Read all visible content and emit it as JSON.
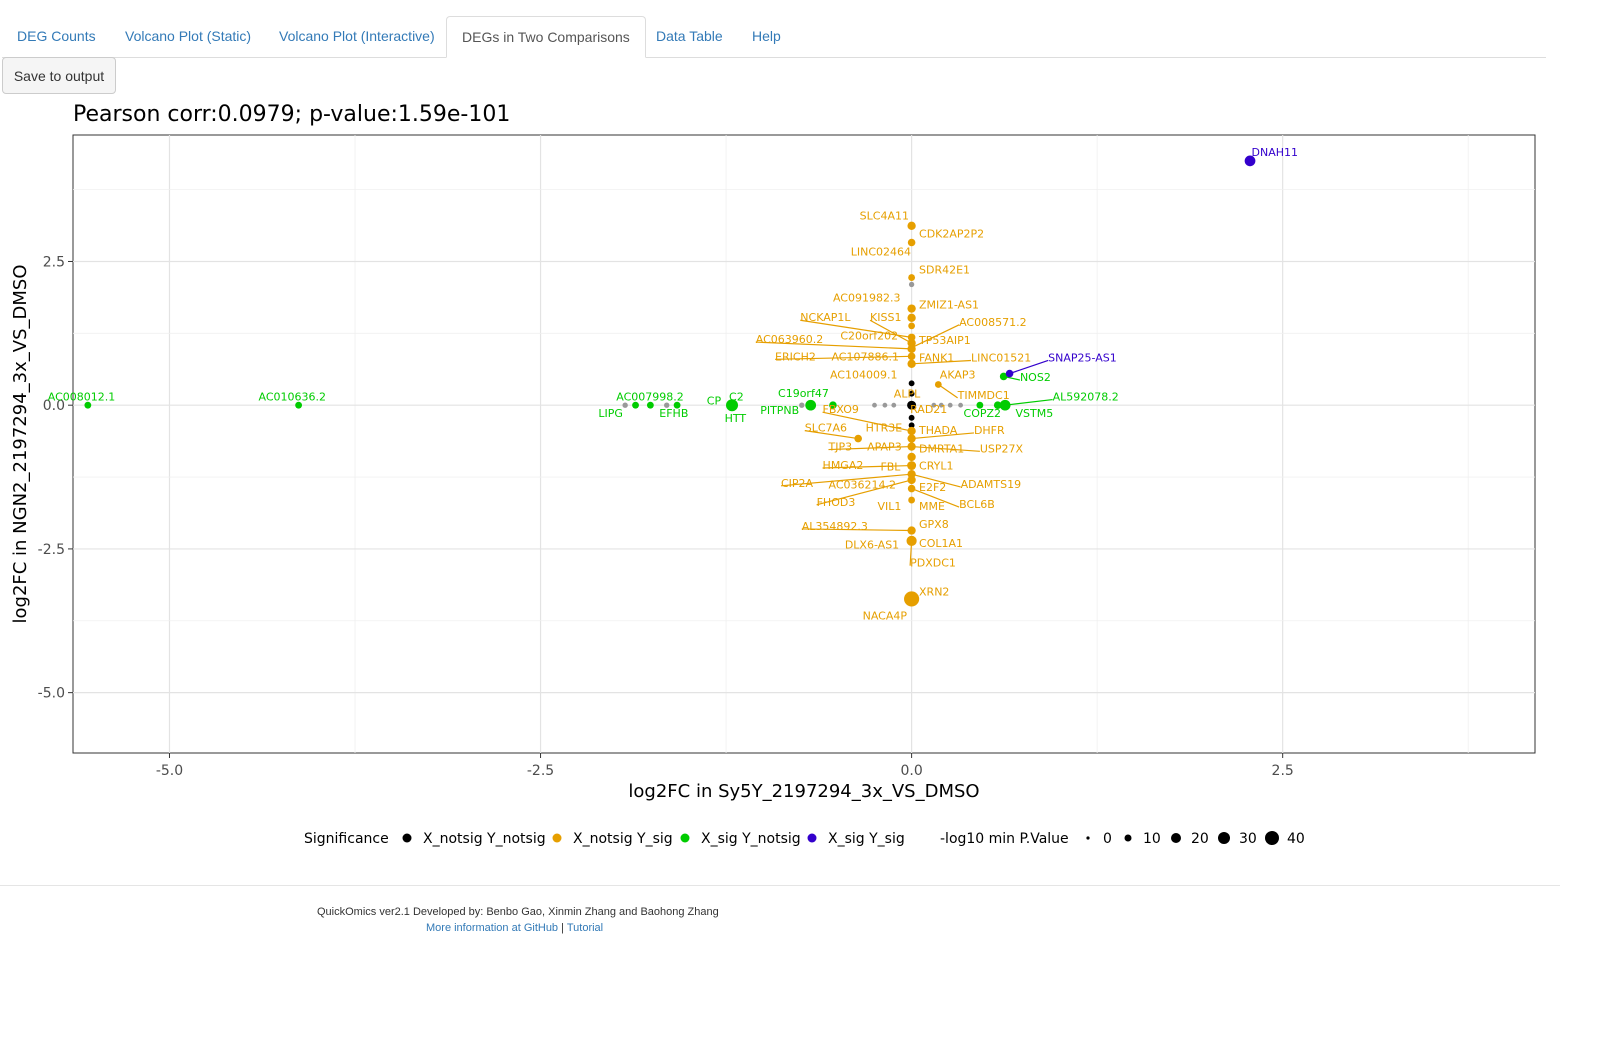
{
  "tabs": [
    {
      "label": "DEG Counts",
      "active": false
    },
    {
      "label": "Volcano Plot (Static)",
      "active": false
    },
    {
      "label": "Volcano Plot (Interactive)",
      "active": false
    },
    {
      "label": "DEGs in Two Comparisons",
      "active": true
    },
    {
      "label": "Data Table",
      "active": false
    },
    {
      "label": "Help",
      "active": false
    }
  ],
  "toolbar": {
    "save_label": "Save to output"
  },
  "footer": {
    "credit": "QuickOmics ver2.1 Developed by: Benbo Gao, Xinmin Zhang and Baohong Zhang",
    "more_info": "More information at GitHub",
    "separator": "|",
    "tutorial": "Tutorial"
  },
  "chart_data": {
    "type": "scatter",
    "title": "Pearson corr:0.0979; p-value:1.59e-101",
    "xlabel": "log2FC in Sy5Y_2197294_3x_VS_DMSO",
    "ylabel": "log2FC in NGN2_2197294_3x_VS_DMSO",
    "xlim": [
      -5.65,
      4.2
    ],
    "ylim": [
      -6.05,
      4.7
    ],
    "xticks": [
      -5.0,
      -2.5,
      0.0,
      2.5
    ],
    "xtick_labels": [
      "-5.0",
      "-2.5",
      "0.0",
      "2.5"
    ],
    "yticks": [
      -5.0,
      -2.5,
      0.0,
      2.5
    ],
    "ytick_labels": [
      "-5.0",
      "-2.5",
      "0.0",
      "2.5"
    ],
    "grid": true,
    "legend_placement": "bottom",
    "colors": {
      "X_notsig Y_notsig": "#000000",
      "X_notsig Y_sig": "#E69F00",
      "X_sig Y_notsig": "#00CC00",
      "X_sig Y_sig": "#3300CC",
      "other": "#999999"
    },
    "legend": {
      "significance_title": "Significance",
      "significance_entries": [
        {
          "label": "X_notsig Y_notsig",
          "color": "#000000"
        },
        {
          "label": "X_notsig Y_sig",
          "color": "#E69F00"
        },
        {
          "label": "X_sig Y_notsig",
          "color": "#00CC00"
        },
        {
          "label": "X_sig Y_sig",
          "color": "#3300CC"
        }
      ],
      "size_title": "-log10 min P.Value",
      "size_entries": [
        "0",
        "10",
        "20",
        "30",
        "40"
      ]
    },
    "points": [
      {
        "x": 2.28,
        "y": 4.25,
        "group": "X_sig Y_sig",
        "size": 20
      },
      {
        "x": 0.66,
        "y": 0.55,
        "group": "X_sig Y_sig",
        "size": 10
      },
      {
        "x": -5.55,
        "y": 0.0,
        "group": "X_sig Y_notsig",
        "size": 8
      },
      {
        "x": -4.13,
        "y": 0.0,
        "group": "X_sig Y_notsig",
        "size": 8
      },
      {
        "x": -1.86,
        "y": 0.0,
        "group": "X_sig Y_notsig",
        "size": 8
      },
      {
        "x": -1.76,
        "y": 0.0,
        "group": "X_sig Y_notsig",
        "size": 8
      },
      {
        "x": -1.58,
        "y": 0.0,
        "group": "X_sig Y_notsig",
        "size": 8
      },
      {
        "x": -1.21,
        "y": 0.0,
        "group": "X_sig Y_notsig",
        "size": 25
      },
      {
        "x": -0.68,
        "y": 0.0,
        "group": "X_sig Y_notsig",
        "size": 20
      },
      {
        "x": -0.53,
        "y": 0.0,
        "group": "X_sig Y_notsig",
        "size": 10
      },
      {
        "x": 0.46,
        "y": 0.0,
        "group": "X_sig Y_notsig",
        "size": 8
      },
      {
        "x": 0.58,
        "y": 0.0,
        "group": "X_sig Y_notsig",
        "size": 10
      },
      {
        "x": 0.63,
        "y": 0.0,
        "group": "X_sig Y_notsig",
        "size": 20
      },
      {
        "x": 0.62,
        "y": 0.5,
        "group": "X_sig Y_notsig",
        "size": 10
      },
      {
        "x": 0.0,
        "y": 3.12,
        "group": "X_notsig Y_sig",
        "size": 12
      },
      {
        "x": 0.0,
        "y": 2.83,
        "group": "X_notsig Y_sig",
        "size": 10
      },
      {
        "x": 0.0,
        "y": 2.22,
        "group": "X_notsig Y_sig",
        "size": 8
      },
      {
        "x": 0.0,
        "y": 1.68,
        "group": "X_notsig Y_sig",
        "size": 12
      },
      {
        "x": 0.0,
        "y": 1.52,
        "group": "X_notsig Y_sig",
        "size": 12
      },
      {
        "x": 0.0,
        "y": 1.38,
        "group": "X_notsig Y_sig",
        "size": 8
      },
      {
        "x": 0.0,
        "y": 1.18,
        "group": "X_notsig Y_sig",
        "size": 10
      },
      {
        "x": 0.0,
        "y": 1.08,
        "group": "X_notsig Y_sig",
        "size": 12
      },
      {
        "x": 0.0,
        "y": 0.98,
        "group": "X_notsig Y_sig",
        "size": 12
      },
      {
        "x": 0.0,
        "y": 0.85,
        "group": "X_notsig Y_sig",
        "size": 10
      },
      {
        "x": 0.0,
        "y": 0.72,
        "group": "X_notsig Y_sig",
        "size": 12
      },
      {
        "x": 0.18,
        "y": 0.36,
        "group": "X_notsig Y_sig",
        "size": 8
      },
      {
        "x": -0.36,
        "y": -0.58,
        "group": "X_notsig Y_sig",
        "size": 10
      },
      {
        "x": 0.0,
        "y": -0.45,
        "group": "X_notsig Y_sig",
        "size": 12
      },
      {
        "x": 0.0,
        "y": -0.58,
        "group": "X_notsig Y_sig",
        "size": 12
      },
      {
        "x": 0.0,
        "y": -0.72,
        "group": "X_notsig Y_sig",
        "size": 12
      },
      {
        "x": 0.0,
        "y": -0.9,
        "group": "X_notsig Y_sig",
        "size": 12
      },
      {
        "x": 0.0,
        "y": -1.05,
        "group": "X_notsig Y_sig",
        "size": 14
      },
      {
        "x": 0.0,
        "y": -1.2,
        "group": "X_notsig Y_sig",
        "size": 12
      },
      {
        "x": 0.0,
        "y": -1.3,
        "group": "X_notsig Y_sig",
        "size": 12
      },
      {
        "x": 0.0,
        "y": -1.45,
        "group": "X_notsig Y_sig",
        "size": 10
      },
      {
        "x": 0.0,
        "y": -1.65,
        "group": "X_notsig Y_sig",
        "size": 8
      },
      {
        "x": 0.0,
        "y": -2.18,
        "group": "X_notsig Y_sig",
        "size": 12
      },
      {
        "x": 0.0,
        "y": -2.36,
        "group": "X_notsig Y_sig",
        "size": 18
      },
      {
        "x": 0.0,
        "y": -3.37,
        "group": "X_notsig Y_sig",
        "size": 40
      },
      {
        "x": 0.0,
        "y": 0.0,
        "group": "X_notsig Y_notsig",
        "size": 14
      },
      {
        "x": 0.0,
        "y": 0.2,
        "group": "X_notsig Y_notsig",
        "size": 6
      },
      {
        "x": 0.0,
        "y": 0.38,
        "group": "X_notsig Y_notsig",
        "size": 6
      },
      {
        "x": 0.0,
        "y": -0.22,
        "group": "X_notsig Y_notsig",
        "size": 6
      },
      {
        "x": 0.0,
        "y": -0.35,
        "group": "X_notsig Y_notsig",
        "size": 6
      },
      {
        "x": 0.0,
        "y": 2.1,
        "group": "other",
        "size": 5
      },
      {
        "x": -1.93,
        "y": 0.0,
        "group": "other",
        "size": 5
      },
      {
        "x": -1.65,
        "y": 0.0,
        "group": "other",
        "size": 5
      },
      {
        "x": -0.74,
        "y": 0.0,
        "group": "other",
        "size": 5
      },
      {
        "x": -0.25,
        "y": 0.0,
        "group": "other",
        "size": 4
      },
      {
        "x": -0.18,
        "y": 0.0,
        "group": "other",
        "size": 4
      },
      {
        "x": -0.12,
        "y": 0.0,
        "group": "other",
        "size": 4
      },
      {
        "x": 0.15,
        "y": 0.0,
        "group": "other",
        "size": 4
      },
      {
        "x": 0.2,
        "y": 0.0,
        "group": "other",
        "size": 4
      },
      {
        "x": 0.26,
        "y": 0.0,
        "group": "other",
        "size": 4
      },
      {
        "x": 0.33,
        "y": 0.0,
        "group": "other",
        "size": 4
      }
    ],
    "labels": [
      {
        "text": "DNAH11",
        "x": 2.29,
        "y": 4.4,
        "group": "X_sig Y_sig"
      },
      {
        "text": "SNAP25-AS1",
        "x": 0.92,
        "y": 0.83,
        "group": "X_sig Y_sig",
        "lx": 0.66,
        "ly": 0.55
      },
      {
        "text": "AC008012.1",
        "x": -5.82,
        "y": 0.15,
        "group": "X_sig Y_notsig"
      },
      {
        "text": "AC010636.2",
        "x": -4.4,
        "y": 0.15,
        "group": "X_sig Y_notsig"
      },
      {
        "text": "AC007998.2",
        "x": -1.99,
        "y": 0.15,
        "group": "X_sig Y_notsig"
      },
      {
        "text": "LIPG",
        "x": -2.11,
        "y": -0.14,
        "group": "X_sig Y_notsig"
      },
      {
        "text": "EFHB",
        "x": -1.7,
        "y": -0.14,
        "group": "X_sig Y_notsig"
      },
      {
        "text": "CP",
        "x": -1.38,
        "y": 0.08,
        "group": "X_sig Y_notsig"
      },
      {
        "text": "C2",
        "x": -1.23,
        "y": 0.15,
        "group": "X_sig Y_notsig"
      },
      {
        "text": "HTT",
        "x": -1.26,
        "y": -0.22,
        "group": "X_sig Y_notsig"
      },
      {
        "text": "C19orf47",
        "x": -0.9,
        "y": 0.21,
        "group": "X_sig Y_notsig"
      },
      {
        "text": "PITPNB",
        "x": -1.02,
        "y": -0.08,
        "group": "X_sig Y_notsig"
      },
      {
        "text": "NOS2",
        "x": 0.73,
        "y": 0.49,
        "group": "X_sig Y_notsig",
        "lx": 0.62,
        "ly": 0.5
      },
      {
        "text": "AL592078.2",
        "x": 0.95,
        "y": 0.15,
        "group": "X_sig Y_notsig",
        "lx": 0.63,
        "ly": 0.0
      },
      {
        "text": "COPZ2",
        "x": 0.35,
        "y": -0.14,
        "group": "X_sig Y_notsig"
      },
      {
        "text": "VSTM5",
        "x": 0.7,
        "y": -0.14,
        "group": "X_sig Y_notsig"
      },
      {
        "text": "SLC4A11",
        "x": -0.35,
        "y": 3.3,
        "group": "X_notsig Y_sig"
      },
      {
        "text": "CDK2AP2P2",
        "x": 0.05,
        "y": 2.99,
        "group": "X_notsig Y_sig"
      },
      {
        "text": "LINC02464",
        "x": -0.41,
        "y": 2.67,
        "group": "X_notsig Y_sig"
      },
      {
        "text": "SDR42E1",
        "x": 0.05,
        "y": 2.36,
        "group": "X_notsig Y_sig"
      },
      {
        "text": "AC091982.3",
        "x": -0.53,
        "y": 1.87,
        "group": "X_notsig Y_sig"
      },
      {
        "text": "ZMIZ1-AS1",
        "x": 0.05,
        "y": 1.75,
        "group": "X_notsig Y_sig"
      },
      {
        "text": "NCKAP1L",
        "x": -0.75,
        "y": 1.53,
        "group": "X_notsig Y_sig",
        "lx": 0.0,
        "ly": 1.18
      },
      {
        "text": "KISS1",
        "x": -0.28,
        "y": 1.53,
        "group": "X_notsig Y_sig",
        "lx": 0.0,
        "ly": 1.08
      },
      {
        "text": "AC008571.2",
        "x": 0.32,
        "y": 1.45,
        "group": "X_notsig Y_sig",
        "lx": 0.0,
        "ly": 1.0
      },
      {
        "text": "C20orf202",
        "x": -0.48,
        "y": 1.21,
        "group": "X_notsig Y_sig"
      },
      {
        "text": "AC063960.2",
        "x": -1.05,
        "y": 1.15,
        "group": "X_notsig Y_sig",
        "lx": 0.0,
        "ly": 0.98
      },
      {
        "text": "TP53AIP1",
        "x": 0.05,
        "y": 1.13,
        "group": "X_notsig Y_sig"
      },
      {
        "text": "ERICH2",
        "x": -0.92,
        "y": 0.85,
        "group": "X_notsig Y_sig",
        "lx": 0.0,
        "ly": 0.85
      },
      {
        "text": "AC107886.1",
        "x": -0.54,
        "y": 0.85,
        "group": "X_notsig Y_sig"
      },
      {
        "text": "FANK1",
        "x": 0.05,
        "y": 0.83,
        "group": "X_notsig Y_sig"
      },
      {
        "text": "LINC01521",
        "x": 0.4,
        "y": 0.83,
        "group": "X_notsig Y_sig",
        "lx": 0.0,
        "ly": 0.72
      },
      {
        "text": "AC104009.1",
        "x": -0.55,
        "y": 0.53,
        "group": "X_notsig Y_sig"
      },
      {
        "text": "AKAP3",
        "x": 0.19,
        "y": 0.53,
        "group": "X_notsig Y_sig"
      },
      {
        "text": "ALPL",
        "x": -0.12,
        "y": 0.2,
        "group": "X_notsig Y_sig"
      },
      {
        "text": "TIMMDC1",
        "x": 0.31,
        "y": 0.18,
        "group": "X_notsig Y_sig",
        "lx": 0.18,
        "ly": 0.36
      },
      {
        "text": "FBXO9",
        "x": -0.6,
        "y": -0.07,
        "group": "X_notsig Y_sig",
        "lx": 0.0,
        "ly": -0.45
      },
      {
        "text": "RAD21",
        "x": -0.01,
        "y": -0.07,
        "group": "X_notsig Y_sig"
      },
      {
        "text": "SLC7A6",
        "x": -0.72,
        "y": -0.39,
        "group": "X_notsig Y_sig",
        "lx": -0.36,
        "ly": -0.58
      },
      {
        "text": "HTR3E",
        "x": -0.31,
        "y": -0.39,
        "group": "X_notsig Y_sig"
      },
      {
        "text": "THADA",
        "x": 0.05,
        "y": -0.43,
        "group": "X_notsig Y_sig"
      },
      {
        "text": "DHFR",
        "x": 0.42,
        "y": -0.43,
        "group": "X_notsig Y_sig",
        "lx": 0.0,
        "ly": -0.58
      },
      {
        "text": "TJP3",
        "x": -0.56,
        "y": -0.72,
        "group": "X_notsig Y_sig",
        "lx": 0.0,
        "ly": -0.72
      },
      {
        "text": "APAP3",
        "x": -0.3,
        "y": -0.72,
        "group": "X_notsig Y_sig"
      },
      {
        "text": "DMRTA1",
        "x": 0.05,
        "y": -0.75,
        "group": "X_notsig Y_sig"
      },
      {
        "text": "USP27X",
        "x": 0.46,
        "y": -0.75,
        "group": "X_notsig Y_sig",
        "lx": 0.0,
        "ly": -0.72
      },
      {
        "text": "HMGA2",
        "x": -0.6,
        "y": -1.04,
        "group": "X_notsig Y_sig",
        "lx": 0.0,
        "ly": -1.05
      },
      {
        "text": "FBL",
        "x": -0.21,
        "y": -1.07,
        "group": "X_notsig Y_sig"
      },
      {
        "text": "CRYL1",
        "x": 0.05,
        "y": -1.05,
        "group": "X_notsig Y_sig"
      },
      {
        "text": "CIP2A",
        "x": -0.88,
        "y": -1.35,
        "group": "X_notsig Y_sig",
        "lx": 0.0,
        "ly": -1.2
      },
      {
        "text": "AC036214.2",
        "x": -0.56,
        "y": -1.38,
        "group": "X_notsig Y_sig"
      },
      {
        "text": "ADAMTS19",
        "x": 0.33,
        "y": -1.37,
        "group": "X_notsig Y_sig",
        "lx": 0.0,
        "ly": -1.2
      },
      {
        "text": "E2F2",
        "x": 0.05,
        "y": -1.42,
        "group": "X_notsig Y_sig"
      },
      {
        "text": "FHOD3",
        "x": -0.64,
        "y": -1.68,
        "group": "X_notsig Y_sig",
        "lx": 0.0,
        "ly": -1.3
      },
      {
        "text": "VIL1",
        "x": -0.23,
        "y": -1.75,
        "group": "X_notsig Y_sig"
      },
      {
        "text": "MME",
        "x": 0.05,
        "y": -1.75,
        "group": "X_notsig Y_sig"
      },
      {
        "text": "BCL6B",
        "x": 0.32,
        "y": -1.72,
        "group": "X_notsig Y_sig",
        "lx": 0.0,
        "ly": -1.45
      },
      {
        "text": "AL354892.3",
        "x": -0.74,
        "y": -2.1,
        "group": "X_notsig Y_sig",
        "lx": 0.0,
        "ly": -2.18
      },
      {
        "text": "GPX8",
        "x": 0.05,
        "y": -2.07,
        "group": "X_notsig Y_sig"
      },
      {
        "text": "DLX6-AS1",
        "x": -0.45,
        "y": -2.42,
        "group": "X_notsig Y_sig"
      },
      {
        "text": "COL1A1",
        "x": 0.05,
        "y": -2.4,
        "group": "X_notsig Y_sig"
      },
      {
        "text": "PDXDC1",
        "x": -0.01,
        "y": -2.74,
        "group": "X_notsig Y_sig",
        "lx": 0.0,
        "ly": -2.36
      },
      {
        "text": "XRN2",
        "x": 0.05,
        "y": -3.24,
        "group": "X_notsig Y_sig"
      },
      {
        "text": "NACA4P",
        "x": -0.33,
        "y": -3.66,
        "group": "X_notsig Y_sig"
      }
    ]
  }
}
